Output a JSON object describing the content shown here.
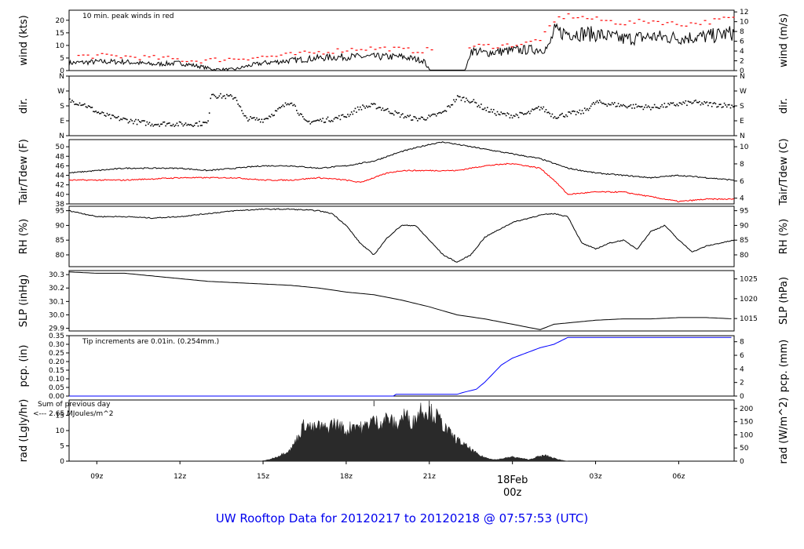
{
  "title": "UW Rooftop Data for 20120217  to  20120218 @ 07:57:53  (UTC)",
  "colors": {
    "frame": "#000000",
    "red": "#ff0000",
    "blue": "#0000ff",
    "purple": "#9900cc",
    "title": "#0000ee",
    "fill": "#2a2a2a"
  },
  "x_axis": {
    "ticks": [
      {
        "label": "09z",
        "hour": 1
      },
      {
        "label": "12z",
        "hour": 4
      },
      {
        "label": "15z",
        "hour": 7
      },
      {
        "label": "18z",
        "hour": 10
      },
      {
        "label": "21z",
        "hour": 13
      },
      {
        "label": "00z",
        "hour": 16
      },
      {
        "label": "03z",
        "hour": 19
      },
      {
        "label": "06z",
        "hour": 22
      }
    ],
    "date_label": "18Feb",
    "date_tick": "00z",
    "range_hours": [
      0,
      24
    ]
  },
  "chart_data": [
    {
      "id": "wind",
      "type": "line",
      "ylabel": "wind (kts)",
      "ylabel_right": "wind (m/s)",
      "ylim": [
        0,
        24
      ],
      "yticks": [
        0,
        5,
        10,
        15,
        20
      ],
      "right_ylim": [
        0,
        12.35
      ],
      "right_ticks": [
        0,
        2,
        4,
        6,
        8,
        10,
        12
      ],
      "annotation": "10 min. peak winds in red",
      "series": [
        {
          "name": "wind",
          "color": "#000000",
          "x": [
            0,
            1,
            2,
            3,
            4,
            4.8,
            5.2,
            6,
            6.5,
            7,
            8,
            9,
            10,
            11,
            12,
            12.8,
            13.0,
            14.0,
            14.3,
            14.5,
            15,
            16,
            17,
            17.3,
            17.5,
            18,
            19,
            20,
            21,
            22,
            23,
            24
          ],
          "y": [
            3,
            3.5,
            3.5,
            2.5,
            3,
            1.5,
            0.5,
            0.5,
            2,
            3,
            4,
            5,
            5.5,
            5.5,
            5.5,
            4,
            0.2,
            0.2,
            0.2,
            8,
            7,
            8,
            8.5,
            9,
            15.5,
            15,
            14.5,
            12.5,
            13.5,
            13,
            13.5,
            15
          ]
        },
        {
          "name": "peak",
          "color": "#ff0000",
          "x": [
            0.5,
            1.5,
            2.5,
            3.5,
            4.5,
            7.5,
            8.5,
            9.5,
            10.5,
            11.5,
            12.5,
            14.8,
            15.5,
            16.5,
            17.0,
            17.6,
            18.0,
            19.0,
            20.0,
            21.0,
            22.0,
            23.0,
            23.8
          ],
          "y": [
            6,
            6,
            5.5,
            5,
            4,
            6,
            7,
            8,
            9,
            9,
            8,
            10,
            10,
            11,
            13,
            21,
            22,
            20.5,
            19,
            20,
            18.5,
            19.5,
            21
          ]
        }
      ]
    },
    {
      "id": "dir",
      "type": "scatter",
      "ylabel": "dir.",
      "ylabel_right": "dir.",
      "ylim": [
        0,
        360
      ],
      "ytick_labels": [
        "N",
        "E",
        "S",
        "W",
        "N"
      ],
      "ytick_values": [
        0,
        90,
        180,
        270,
        360
      ],
      "series": [
        {
          "name": "dir",
          "color": "#000000",
          "x": [
            0,
            0.5,
            1.0,
            1.5,
            2.0,
            2.5,
            3.0,
            3.5,
            4.0,
            4.5,
            5.0,
            5.1,
            5.3,
            6.0,
            6.3,
            6.5,
            7.0,
            7.5,
            8.0,
            8.5,
            9.0,
            9.5,
            10.0,
            10.5,
            11.0,
            11.5,
            12.0,
            12.5,
            13.0,
            13.5,
            14.0,
            14.5,
            15.0,
            15.5,
            16.0,
            16.5,
            17.0,
            17.5,
            18.0,
            18.5,
            19.0,
            19.5,
            20.0,
            20.5,
            21.0,
            21.5,
            22.0,
            22.5,
            23.0,
            23.5,
            24.0
          ],
          "y": [
            210,
            190,
            140,
            110,
            95,
            80,
            70,
            72,
            68,
            70,
            75,
            260,
            240,
            230,
            110,
            100,
            95,
            150,
            210,
            80,
            90,
            100,
            120,
            170,
            180,
            150,
            120,
            100,
            110,
            140,
            230,
            210,
            160,
            130,
            120,
            130,
            170,
            115,
            130,
            140,
            200,
            190,
            180,
            175,
            170,
            180,
            190,
            200,
            190,
            185,
            180
          ]
        }
      ]
    },
    {
      "id": "temp",
      "type": "line",
      "ylabel": "Tair/Tdew (F)",
      "ylabel_right": "Tair/Tdew (C)",
      "ylim": [
        38,
        51.5
      ],
      "yticks": [
        38,
        40,
        42,
        44,
        46,
        48,
        50
      ],
      "right_ylim": [
        3.33,
        10.83
      ],
      "right_ticks": [
        4,
        6,
        8,
        10
      ],
      "series": [
        {
          "name": "Tair",
          "color": "#000000",
          "x": [
            0,
            2,
            4,
            5,
            6,
            7,
            8,
            9,
            10,
            11,
            11.5,
            12,
            13,
            13.5,
            14,
            15,
            16,
            17,
            18,
            19,
            20,
            21,
            22,
            23,
            24
          ],
          "y": [
            44.5,
            45.5,
            45.5,
            45,
            45.5,
            46,
            46,
            45.5,
            46,
            47,
            48,
            49,
            50.5,
            51,
            50.5,
            49.5,
            48.5,
            47.5,
            45.5,
            44.5,
            44,
            43.5,
            44,
            43.5,
            43
          ]
        },
        {
          "name": "Tdew",
          "color": "#ff0000",
          "x": [
            0,
            2,
            4,
            6,
            7,
            8,
            9,
            10,
            10.5,
            11,
            11.5,
            12,
            13,
            14,
            15,
            16,
            16.5,
            17,
            17.5,
            18,
            19,
            20,
            21,
            21.5,
            22,
            23,
            24
          ],
          "y": [
            43,
            43,
            43.5,
            43.5,
            43,
            43,
            43.5,
            43,
            42.5,
            43.5,
            44.5,
            45,
            45,
            45,
            46,
            46.5,
            46,
            45.5,
            43,
            40,
            40.5,
            40.5,
            39.5,
            39,
            38.5,
            39,
            39
          ]
        }
      ]
    },
    {
      "id": "rh",
      "type": "line",
      "ylabel": "RH (%)",
      "ylabel_right": "RH (%)",
      "ylim": [
        76,
        96.5
      ],
      "yticks": [
        80,
        85,
        90,
        95
      ],
      "right_ylim": [
        76,
        96.5
      ],
      "right_ticks": [
        80,
        85,
        90,
        95
      ],
      "series": [
        {
          "name": "RH",
          "color": "#000000",
          "x": [
            0,
            1,
            2,
            3,
            4,
            5,
            6,
            7,
            8,
            9,
            9.5,
            10,
            10.5,
            11,
            11.5,
            12,
            12.5,
            13,
            13.5,
            14,
            14.5,
            15,
            16,
            17,
            17.5,
            18,
            18.5,
            19,
            19.5,
            20,
            20.5,
            21,
            21.5,
            22,
            22.5,
            23,
            24
          ],
          "y": [
            95,
            93,
            93,
            92.5,
            93,
            94,
            95,
            95.5,
            95.5,
            95,
            94,
            90,
            84,
            80,
            86,
            90,
            90,
            85,
            80,
            77.5,
            80,
            86,
            91,
            93.5,
            94,
            93,
            84,
            82,
            84,
            85,
            82,
            88,
            90,
            85,
            81,
            83,
            85
          ]
        }
      ]
    },
    {
      "id": "slp",
      "type": "line",
      "ylabel": "SLP (inHg)",
      "ylabel_right": "SLP (hPa)",
      "ylim": [
        29.88,
        30.33
      ],
      "yticks": [
        29.9,
        30.0,
        30.1,
        30.2,
        30.3
      ],
      "right_ylim": [
        1011.86,
        1027.1
      ],
      "right_ticks": [
        1015,
        1020,
        1025
      ],
      "series": [
        {
          "name": "SLP",
          "color": "#000000",
          "x": [
            0,
            1,
            2,
            3,
            4,
            5,
            6,
            7,
            8,
            9,
            10,
            11,
            12,
            13,
            14,
            15,
            16,
            17,
            17.5,
            18,
            19,
            20,
            21,
            22,
            23,
            24
          ],
          "y": [
            30.32,
            30.31,
            30.31,
            30.29,
            30.27,
            30.25,
            30.24,
            30.23,
            30.22,
            30.2,
            30.17,
            30.15,
            30.11,
            30.06,
            30.0,
            29.97,
            29.93,
            29.89,
            29.93,
            29.94,
            29.96,
            29.97,
            29.97,
            29.98,
            29.98,
            29.97
          ]
        }
      ]
    },
    {
      "id": "pcp",
      "type": "line",
      "ylabel": "pcp. (in)",
      "ylabel_right": "pcp. (mm)",
      "ylim": [
        0,
        0.35
      ],
      "yticks": [
        0.0,
        0.05,
        0.1,
        0.15,
        0.2,
        0.25,
        0.3,
        0.35
      ],
      "right_ylim": [
        0,
        8.89
      ],
      "right_ticks": [
        0,
        2,
        4,
        6,
        8
      ],
      "annotation": "Tip increments are 0.01in. (0.254mm.)",
      "series": [
        {
          "name": "pcp",
          "color": "#0000ff",
          "x": [
            0,
            11.7,
            11.8,
            14.0,
            14.2,
            14.7,
            15.0,
            15.3,
            15.6,
            16.0,
            16.5,
            17.0,
            17.5,
            18.0,
            24
          ],
          "y": [
            0,
            0,
            0.01,
            0.01,
            0.02,
            0.04,
            0.08,
            0.13,
            0.18,
            0.22,
            0.25,
            0.28,
            0.3,
            0.34,
            0.34
          ]
        }
      ]
    },
    {
      "id": "rad",
      "type": "area",
      "ylabel": "rad (Lgly/hr)",
      "ylabel_right": "rad (W/m^2)",
      "ylim": [
        0,
        20
      ],
      "yticks": [
        0,
        5,
        10,
        15
      ],
      "right_ylim": [
        0,
        232.6
      ],
      "right_ticks": [
        0,
        50,
        100,
        150,
        200
      ],
      "annotations": [
        "Sum of previous day",
        "<--- 2.65 MJoules/m^2"
      ],
      "markers": [
        {
          "x": 11.0,
          "label": "l"
        },
        {
          "x": 13.0,
          "label": "l"
        }
      ],
      "series": [
        {
          "name": "rad",
          "color": "#2a2a2a",
          "x": [
            6.9,
            7.2,
            7.5,
            7.8,
            8.0,
            8.3,
            8.5,
            8.8,
            9.0,
            9.3,
            9.5,
            9.8,
            10.0,
            10.3,
            10.6,
            10.9,
            11.2,
            11.5,
            11.8,
            12.1,
            12.4,
            12.7,
            13.0,
            13.3,
            13.6,
            13.9,
            14.2,
            14.5,
            14.8,
            15.1,
            15.4,
            15.7,
            16.0,
            16.3,
            16.6,
            16.9,
            17.2,
            17.5,
            17.8,
            18.0
          ],
          "y": [
            0,
            0.5,
            1.5,
            3,
            4,
            9,
            13,
            11,
            12,
            11,
            13,
            12,
            10,
            13,
            11,
            14,
            13,
            15,
            12,
            16,
            13,
            18,
            17,
            15,
            11,
            8,
            6,
            4,
            2,
            1,
            0.5,
            1,
            1.5,
            1,
            0.5,
            1.5,
            2,
            1,
            0.3,
            0
          ]
        }
      ]
    }
  ]
}
